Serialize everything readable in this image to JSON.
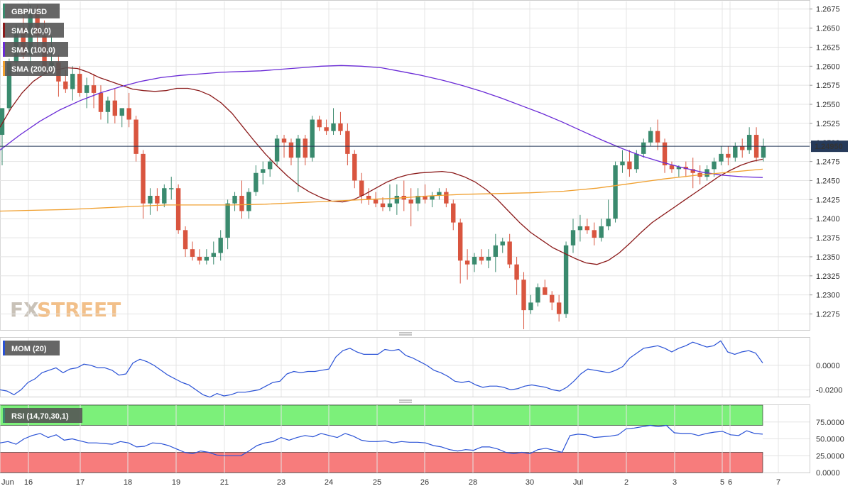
{
  "legend": {
    "pair": "GBP/USD",
    "sma20": "SMA (20,0)",
    "sma100": "SMA (100,0)",
    "sma200": "SMA (200,0)",
    "mom": "MOM (20)",
    "rsi": "RSI (14,70,30,1)"
  },
  "watermark": {
    "fx": "FX",
    "street": "STREET"
  },
  "last_price_label": "1.24950",
  "colors": {
    "bull": "#3a8a6e",
    "bear": "#d9553f",
    "sma20": "#8b1a1a",
    "sma100": "#6a2bd6",
    "sma200": "#f0a030",
    "mom_line": "#2a52d6",
    "rsi_line": "#2a52d6",
    "rsi_overbought": "#7cf07a",
    "rsi_oversold": "#f77c7c",
    "grid": "#e4e4e4",
    "last_price_bg": "#263a5a"
  },
  "chart_data": [
    {
      "type": "candlestick",
      "title": "GBP/USD",
      "ylim": [
        1.2255,
        1.2685
      ],
      "y_ticks": [
        "1.2675",
        "1.2650",
        "1.2625",
        "1.2600",
        "1.2575",
        "1.2550",
        "1.2525",
        "1.2500",
        "1.2475",
        "1.2450",
        "1.2425",
        "1.2400",
        "1.2375",
        "1.2350",
        "1.2325",
        "1.2300",
        "1.2275"
      ],
      "x_ticks": [
        "Jun",
        "16",
        "17",
        "18",
        "19",
        "21",
        "23",
        "24",
        "25",
        "26",
        "28",
        "30",
        "Jul",
        "2",
        "3",
        "5",
        "6",
        "7"
      ],
      "candles": [
        [
          1.251,
          1.2545,
          1.247,
          1.2545
        ],
        [
          1.2545,
          1.261,
          1.254,
          1.2605
        ],
        [
          1.2605,
          1.2655,
          1.259,
          1.265
        ],
        [
          1.265,
          1.267,
          1.261,
          1.2615
        ],
        [
          1.2615,
          1.268,
          1.26,
          1.267
        ],
        [
          1.267,
          1.268,
          1.262,
          1.264
        ],
        [
          1.264,
          1.266,
          1.259,
          1.26
        ],
        [
          1.26,
          1.264,
          1.2595,
          1.2605
        ],
        [
          1.2605,
          1.2615,
          1.256,
          1.258
        ],
        [
          1.258,
          1.2595,
          1.2565,
          1.257
        ],
        [
          1.257,
          1.26,
          1.2555,
          1.259
        ],
        [
          1.259,
          1.26,
          1.256,
          1.2565
        ],
        [
          1.2565,
          1.2585,
          1.2545,
          1.2575
        ],
        [
          1.2575,
          1.259,
          1.2545,
          1.2565
        ],
        [
          1.2565,
          1.2575,
          1.253,
          1.254
        ],
        [
          1.254,
          1.256,
          1.2525,
          1.2555
        ],
        [
          1.2555,
          1.257,
          1.2525,
          1.2535
        ],
        [
          1.2535,
          1.2545,
          1.252,
          1.2545
        ],
        [
          1.2545,
          1.2565,
          1.252,
          1.253
        ],
        [
          1.253,
          1.2535,
          1.2475,
          1.2485
        ],
        [
          1.2485,
          1.249,
          1.24,
          1.242
        ],
        [
          1.242,
          1.244,
          1.2405,
          1.243
        ],
        [
          1.243,
          1.244,
          1.241,
          1.242
        ],
        [
          1.242,
          1.2445,
          1.2415,
          1.244
        ],
        [
          1.244,
          1.2455,
          1.2425,
          1.244
        ],
        [
          1.244,
          1.2445,
          1.238,
          1.2385
        ],
        [
          1.2385,
          1.239,
          1.235,
          1.236
        ],
        [
          1.236,
          1.237,
          1.2345,
          1.235
        ],
        [
          1.235,
          1.236,
          1.234,
          1.2345
        ],
        [
          1.2345,
          1.236,
          1.234,
          1.235
        ],
        [
          1.235,
          1.237,
          1.234,
          1.2355
        ],
        [
          1.2355,
          1.2385,
          1.2345,
          1.2375
        ],
        [
          1.2375,
          1.2425,
          1.236,
          1.242
        ],
        [
          1.242,
          1.2435,
          1.241,
          1.243
        ],
        [
          1.243,
          1.245,
          1.24,
          1.241
        ],
        [
          1.241,
          1.244,
          1.24,
          1.2435
        ],
        [
          1.2435,
          1.247,
          1.243,
          1.246
        ],
        [
          1.246,
          1.2475,
          1.2445,
          1.2465
        ],
        [
          1.2465,
          1.248,
          1.2455,
          1.2475
        ],
        [
          1.2475,
          1.251,
          1.247,
          1.2505
        ],
        [
          1.2505,
          1.251,
          1.248,
          1.25
        ],
        [
          1.25,
          1.2505,
          1.247,
          1.248
        ],
        [
          1.248,
          1.251,
          1.2435,
          1.2505
        ],
        [
          1.2505,
          1.251,
          1.247,
          1.248
        ],
        [
          1.248,
          1.2535,
          1.2475,
          1.253
        ],
        [
          1.253,
          1.2535,
          1.2515,
          1.252
        ],
        [
          1.252,
          1.253,
          1.251,
          1.2515
        ],
        [
          1.2515,
          1.2545,
          1.251,
          1.2525
        ],
        [
          1.2525,
          1.254,
          1.251,
          1.2515
        ],
        [
          1.2515,
          1.2525,
          1.247,
          1.2485
        ],
        [
          1.2485,
          1.249,
          1.244,
          1.245
        ],
        [
          1.245,
          1.246,
          1.242,
          1.243
        ],
        [
          1.243,
          1.244,
          1.2418,
          1.2425
        ],
        [
          1.2425,
          1.2435,
          1.2415,
          1.242
        ],
        [
          1.242,
          1.2428,
          1.241,
          1.2415
        ],
        [
          1.2415,
          1.2445,
          1.241,
          1.242
        ],
        [
          1.242,
          1.2445,
          1.2405,
          1.243
        ],
        [
          1.243,
          1.245,
          1.241,
          1.2425
        ],
        [
          1.2425,
          1.244,
          1.239,
          1.242
        ],
        [
          1.242,
          1.244,
          1.241,
          1.243
        ],
        [
          1.243,
          1.2445,
          1.242,
          1.2425
        ],
        [
          1.2425,
          1.2435,
          1.2415,
          1.243
        ],
        [
          1.243,
          1.244,
          1.2425,
          1.2435
        ],
        [
          1.2435,
          1.244,
          1.2415,
          1.242
        ],
        [
          1.242,
          1.2425,
          1.2385,
          1.2395
        ],
        [
          1.2395,
          1.24,
          1.2315,
          1.2345
        ],
        [
          1.2345,
          1.236,
          1.232,
          1.234
        ],
        [
          1.234,
          1.2355,
          1.233,
          1.235
        ],
        [
          1.235,
          1.236,
          1.234,
          1.2345
        ],
        [
          1.2345,
          1.236,
          1.2335,
          1.235
        ],
        [
          1.235,
          1.238,
          1.233,
          1.2365
        ],
        [
          1.2365,
          1.2375,
          1.2355,
          1.237
        ],
        [
          1.237,
          1.238,
          1.2335,
          1.234
        ],
        [
          1.234,
          1.235,
          1.23,
          1.232
        ],
        [
          1.232,
          1.233,
          1.2255,
          1.228
        ],
        [
          1.228,
          1.23,
          1.2275,
          1.229
        ],
        [
          1.229,
          1.2315,
          1.2285,
          1.231
        ],
        [
          1.231,
          1.232,
          1.23,
          1.23
        ],
        [
          1.23,
          1.2305,
          1.228,
          1.229
        ],
        [
          1.229,
          1.23,
          1.2265,
          1.2275
        ],
        [
          1.2275,
          1.237,
          1.227,
          1.2365
        ],
        [
          1.2365,
          1.24,
          1.2355,
          1.2385
        ],
        [
          1.2385,
          1.2405,
          1.237,
          1.239
        ],
        [
          1.239,
          1.24,
          1.238,
          1.2385
        ],
        [
          1.2385,
          1.2395,
          1.2365,
          1.2375
        ],
        [
          1.2375,
          1.24,
          1.237,
          1.239
        ],
        [
          1.239,
          1.2425,
          1.2385,
          1.24
        ],
        [
          1.24,
          1.2475,
          1.2395,
          1.247
        ],
        [
          1.247,
          1.249,
          1.246,
          1.2475
        ],
        [
          1.2475,
          1.249,
          1.2455,
          1.2465
        ],
        [
          1.2465,
          1.249,
          1.246,
          1.2485
        ],
        [
          1.2485,
          1.2505,
          1.248,
          1.25
        ],
        [
          1.25,
          1.252,
          1.2495,
          1.2515
        ],
        [
          1.2515,
          1.253,
          1.249,
          1.25
        ],
        [
          1.25,
          1.2505,
          1.246,
          1.247
        ],
        [
          1.247,
          1.2475,
          1.246,
          1.2465
        ],
        [
          1.2465,
          1.247,
          1.2455,
          1.2468
        ],
        [
          1.2468,
          1.2475,
          1.2455,
          1.2465
        ],
        [
          1.2465,
          1.248,
          1.244,
          1.246
        ],
        [
          1.246,
          1.247,
          1.2445,
          1.2455
        ],
        [
          1.2455,
          1.247,
          1.245,
          1.2465
        ],
        [
          1.2465,
          1.248,
          1.2455,
          1.2475
        ],
        [
          1.2475,
          1.2495,
          1.247,
          1.2485
        ],
        [
          1.2485,
          1.2495,
          1.247,
          1.248
        ],
        [
          1.248,
          1.25,
          1.2475,
          1.2495
        ],
        [
          1.2495,
          1.2505,
          1.248,
          1.249
        ],
        [
          1.249,
          1.252,
          1.2485,
          1.251
        ],
        [
          1.251,
          1.252,
          1.2475,
          1.248
        ],
        [
          1.248,
          1.2505,
          1.2475,
          1.2495
        ]
      ],
      "series": [
        {
          "name": "SMA (20,0)",
          "values": [
            1.252,
            1.2545,
            1.2565,
            1.258,
            1.259,
            1.2595,
            1.2598,
            1.2597,
            1.2592,
            1.2585,
            1.258,
            1.2575,
            1.257,
            1.2568,
            1.2567,
            1.2568,
            1.2571,
            1.2571,
            1.2568,
            1.2562,
            1.2552,
            1.2538,
            1.252,
            1.2502,
            1.2485,
            1.247,
            1.2456,
            1.2444,
            1.2435,
            1.2428,
            1.2423,
            1.2422,
            1.2425,
            1.2432,
            1.244,
            1.2448,
            1.2454,
            1.2458,
            1.246,
            1.2461,
            1.2462,
            1.246,
            1.2455,
            1.2448,
            1.2438,
            1.2425,
            1.241,
            1.2395,
            1.2382,
            1.2372,
            1.2362,
            1.2355,
            1.2348,
            1.2342,
            1.234,
            1.2345,
            1.2355,
            1.2368,
            1.2382,
            1.2395,
            1.2405,
            1.2415,
            1.2425,
            1.2435,
            1.2445,
            1.2455,
            1.2463,
            1.247,
            1.2475,
            1.2478
          ]
        },
        {
          "name": "SMA (100,0)",
          "values": [
            1.249,
            1.251,
            1.2528,
            1.2543,
            1.2555,
            1.2565,
            1.2573,
            1.258,
            1.2585,
            1.2588,
            1.259,
            1.2592,
            1.2593,
            1.2594,
            1.2596,
            1.2598,
            1.26,
            1.2601,
            1.26,
            1.2598,
            1.2593,
            1.2588,
            1.2582,
            1.2575,
            1.2567,
            1.2558,
            1.2548,
            1.2538,
            1.2527,
            1.2515,
            1.2503,
            1.2492,
            1.2482,
            1.2474,
            1.2467,
            1.2461,
            1.2457,
            1.2455,
            1.2454
          ]
        },
        {
          "name": "SMA (200,0)",
          "values": [
            1.241,
            1.2411,
            1.2412,
            1.2414,
            1.2416,
            1.2418,
            1.2418,
            1.2418,
            1.2419,
            1.2421,
            1.2423,
            1.2425,
            1.2427,
            1.243,
            1.2432,
            1.2433,
            1.2434,
            1.2436,
            1.244,
            1.2446,
            1.2452,
            1.2457,
            1.2461,
            1.2465
          ]
        }
      ],
      "last_price": 1.2495
    },
    {
      "type": "line",
      "title": "MOM (20)",
      "ylim": [
        -0.025,
        0.022
      ],
      "y_ticks": [
        "0.0000",
        "-0.0200"
      ],
      "series": [
        {
          "name": "MOM (20)",
          "values": [
            -0.02,
            -0.021,
            -0.024,
            -0.02,
            -0.014,
            -0.011,
            -0.006,
            -0.004,
            -0.002,
            -0.006,
            -0.003,
            -0.002,
            0.001,
            0.0,
            -0.002,
            -0.002,
            -0.004,
            -0.008,
            -0.007,
            0.002,
            0.005,
            0.003,
            0.0,
            -0.004,
            -0.008,
            -0.011,
            -0.014,
            -0.016,
            -0.02,
            -0.024,
            -0.026,
            -0.023,
            -0.025,
            -0.024,
            -0.022,
            -0.022,
            -0.021,
            -0.02,
            -0.017,
            -0.014,
            -0.013,
            -0.007,
            -0.005,
            -0.006,
            -0.005,
            -0.005,
            -0.004,
            -0.003,
            0.007,
            0.012,
            0.014,
            0.011,
            0.009,
            0.009,
            0.009,
            0.013,
            0.012,
            0.013,
            0.008,
            0.006,
            0.003,
            0.0,
            -0.004,
            -0.006,
            -0.009,
            -0.013,
            -0.014,
            -0.013,
            -0.016,
            -0.018,
            -0.017,
            -0.017,
            -0.018,
            -0.02,
            -0.019,
            -0.017,
            -0.016,
            -0.017,
            -0.018,
            -0.02,
            -0.021,
            -0.018,
            -0.013,
            -0.007,
            -0.003,
            -0.004,
            -0.005,
            -0.006,
            -0.004,
            -0.001,
            0.006,
            0.01,
            0.014,
            0.015,
            0.016,
            0.014,
            0.011,
            0.014,
            0.016,
            0.019,
            0.017,
            0.015,
            0.016,
            0.02,
            0.011,
            0.009,
            0.011,
            0.012,
            0.01,
            0.002
          ]
        }
      ]
    },
    {
      "type": "line",
      "title": "RSI (14,70,30,1)",
      "ylim": [
        0,
        100
      ],
      "y_ticks": [
        "75.0000",
        "50.0000",
        "25.0000",
        "0.0000"
      ],
      "overbought": 70,
      "oversold": 30,
      "series": [
        {
          "name": "RSI (14,70,30,1)",
          "values": [
            44,
            46,
            42,
            50,
            55,
            58,
            52,
            56,
            48,
            50,
            47,
            44,
            44,
            43,
            42,
            46,
            44,
            38,
            39,
            44,
            43,
            40,
            35,
            30,
            28,
            32,
            30,
            26,
            25,
            25,
            25,
            32,
            40,
            44,
            46,
            52,
            48,
            52,
            55,
            53,
            58,
            55,
            52,
            58,
            54,
            48,
            46,
            46,
            47,
            44,
            46,
            45,
            45,
            44,
            40,
            38,
            34,
            32,
            34,
            33,
            38,
            38,
            35,
            30,
            28,
            30,
            28,
            34,
            36,
            33,
            30,
            55,
            57,
            56,
            52,
            53,
            54,
            56,
            65,
            66,
            68,
            70,
            68,
            70,
            59,
            58,
            58,
            55,
            58,
            60,
            61,
            56,
            55,
            62,
            58,
            57
          ]
        }
      ]
    }
  ]
}
